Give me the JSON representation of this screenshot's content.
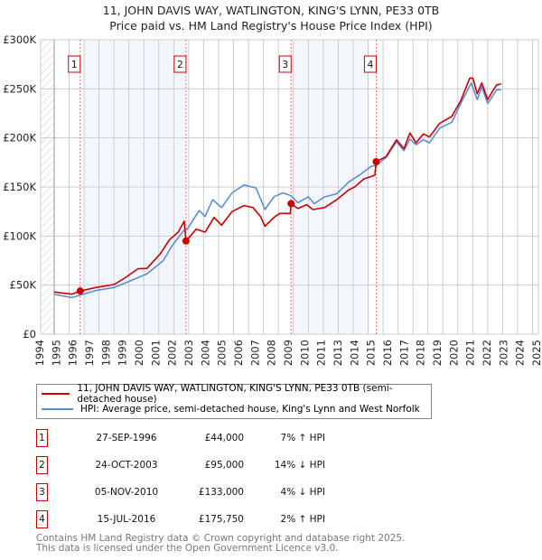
{
  "chart_data": {
    "type": "line",
    "title": "11, JOHN DAVIS WAY, WATLINGTON, KING'S LYNN, PE33 0TB",
    "subtitle": "Price paid vs. HM Land Registry's House Price Index (HPI)",
    "xlim": [
      1994,
      2027.4
    ],
    "ylim": [
      0,
      300000
    ],
    "y_ticks": [
      0,
      50000,
      100000,
      150000,
      200000,
      250000,
      300000
    ],
    "y_tick_labels": [
      "£0",
      "£50K",
      "£100K",
      "£150K",
      "£200K",
      "£250K",
      "£300K"
    ],
    "x_tick_labels": [
      "1994",
      "1995",
      "1996",
      "1997",
      "1998",
      "1999",
      "2000",
      "2001",
      "2002",
      "2003",
      "2004",
      "2005",
      "2006",
      "2007",
      "2008",
      "2009",
      "2010",
      "2011",
      "2013",
      "2014",
      "2015",
      "2016",
      "2017",
      "2018",
      "2019",
      "2020",
      "2021",
      "2022",
      "2023",
      "2024",
      "2025"
    ],
    "grid": true,
    "legend_placement": "below",
    "shaded_periods": [
      [
        1997.0,
        2003.82
      ],
      [
        2011.0,
        2016.1
      ]
    ],
    "hatched_period": [
      1994,
      1995
    ],
    "series": [
      {
        "name": "11, JOHN DAVIS WAY, WATLINGTON, KING'S LYNN, PE33 0TB (semi-detached house)",
        "color": "#cc0000",
        "points": [
          [
            1995.0,
            43000
          ],
          [
            1996.2,
            40800
          ],
          [
            1996.74,
            44000
          ],
          [
            1997.8,
            47600
          ],
          [
            1999.0,
            50600
          ],
          [
            1999.8,
            58000
          ],
          [
            2000.6,
            66600
          ],
          [
            2001.2,
            67000
          ],
          [
            2002.1,
            82000
          ],
          [
            2002.7,
            96000
          ],
          [
            2003.3,
            104000
          ],
          [
            2003.7,
            115000
          ],
          [
            2003.82,
            95000
          ],
          [
            2004.5,
            107000
          ],
          [
            2005.1,
            104000
          ],
          [
            2005.7,
            119000
          ],
          [
            2006.2,
            111000
          ],
          [
            2006.9,
            125000
          ],
          [
            2007.7,
            131000
          ],
          [
            2008.3,
            129000
          ],
          [
            2008.8,
            120000
          ],
          [
            2009.1,
            110000
          ],
          [
            2009.7,
            119000
          ],
          [
            2010.1,
            123000
          ],
          [
            2010.8,
            123000
          ],
          [
            2010.85,
            133000
          ],
          [
            2011.3,
            128000
          ],
          [
            2011.9,
            132000
          ],
          [
            2012.3,
            127000
          ],
          [
            2013.1,
            129000
          ],
          [
            2013.9,
            137000
          ],
          [
            2014.7,
            147000
          ],
          [
            2015.1,
            150000
          ],
          [
            2015.7,
            158000
          ],
          [
            2016.45,
            162000
          ],
          [
            2016.54,
            175750
          ],
          [
            2017.2,
            181000
          ],
          [
            2017.9,
            198000
          ],
          [
            2018.4,
            189000
          ],
          [
            2018.8,
            205000
          ],
          [
            2019.2,
            195000
          ],
          [
            2019.7,
            204000
          ],
          [
            2020.1,
            201000
          ],
          [
            2020.8,
            215000
          ],
          [
            2021.6,
            222000
          ],
          [
            2022.2,
            238000
          ],
          [
            2022.8,
            261000
          ],
          [
            2023.0,
            261000
          ],
          [
            2023.3,
            245000
          ],
          [
            2023.6,
            256000
          ],
          [
            2024.0,
            239000
          ],
          [
            2024.3,
            247000
          ],
          [
            2024.6,
            254000
          ],
          [
            2024.9,
            255000
          ]
        ]
      },
      {
        "name": "HPI: Average price, semi-detached house, King's Lynn and West Norfolk",
        "color": "#5b8fd4",
        "points": [
          [
            1995.0,
            40500
          ],
          [
            1996.2,
            37400
          ],
          [
            1997.8,
            44500
          ],
          [
            1999.0,
            47600
          ],
          [
            2000.0,
            53700
          ],
          [
            2001.2,
            61400
          ],
          [
            2002.3,
            75000
          ],
          [
            2002.9,
            90500
          ],
          [
            2003.7,
            106000
          ],
          [
            2003.9,
            107000
          ],
          [
            2004.7,
            126000
          ],
          [
            2005.1,
            120000
          ],
          [
            2005.6,
            137000
          ],
          [
            2006.2,
            129000
          ],
          [
            2006.9,
            144000
          ],
          [
            2007.7,
            152000
          ],
          [
            2008.5,
            149000
          ],
          [
            2009.1,
            127000
          ],
          [
            2009.7,
            140000
          ],
          [
            2010.3,
            144000
          ],
          [
            2010.85,
            141000
          ],
          [
            2011.3,
            134000
          ],
          [
            2012.0,
            140000
          ],
          [
            2012.4,
            133000
          ],
          [
            2013.1,
            140000
          ],
          [
            2013.9,
            143000
          ],
          [
            2014.7,
            155000
          ],
          [
            2015.5,
            163000
          ],
          [
            2016.2,
            171000
          ],
          [
            2016.54,
            172000
          ],
          [
            2017.2,
            180000
          ],
          [
            2017.9,
            196000
          ],
          [
            2018.4,
            187000
          ],
          [
            2018.8,
            199000
          ],
          [
            2019.2,
            193000
          ],
          [
            2019.7,
            198000
          ],
          [
            2020.1,
            195000
          ],
          [
            2020.8,
            210000
          ],
          [
            2021.6,
            216000
          ],
          [
            2022.2,
            235000
          ],
          [
            2022.9,
            256000
          ],
          [
            2023.3,
            239000
          ],
          [
            2023.6,
            252000
          ],
          [
            2024.0,
            235000
          ],
          [
            2024.3,
            242000
          ],
          [
            2024.6,
            249000
          ],
          [
            2024.9,
            249000
          ]
        ]
      }
    ],
    "sales": [
      {
        "label": "1",
        "year": 1996.74,
        "price": 44000
      },
      {
        "label": "2",
        "year": 2003.82,
        "price": 95000
      },
      {
        "label": "3",
        "year": 2010.85,
        "price": 133000
      },
      {
        "label": "4",
        "year": 2016.54,
        "price": 175750
      }
    ]
  },
  "header": {
    "title": "11, JOHN DAVIS WAY, WATLINGTON, KING'S LYNN, PE33 0TB",
    "subtitle": "Price paid vs. HM Land Registry's House Price Index (HPI)"
  },
  "legend": {
    "property": "11, JOHN DAVIS WAY, WATLINGTON, KING'S LYNN, PE33 0TB (semi-detached house)",
    "hpi": "HPI: Average price, semi-detached house, King's Lynn and West Norfolk"
  },
  "transactions": [
    {
      "num": "1",
      "date": "27-SEP-1996",
      "price": "£44,000",
      "diff": "7% ↑ HPI"
    },
    {
      "num": "2",
      "date": "24-OCT-2003",
      "price": "£95,000",
      "diff": "14% ↓ HPI"
    },
    {
      "num": "3",
      "date": "05-NOV-2010",
      "price": "£133,000",
      "diff": "4% ↓ HPI"
    },
    {
      "num": "4",
      "date": "15-JUL-2016",
      "price": "£175,750",
      "diff": "2% ↑ HPI"
    }
  ],
  "footer": {
    "line1": "Contains HM Land Registry data © Crown copyright and database right 2025.",
    "line2": "This data is licensed under the Open Government Licence v3.0."
  }
}
